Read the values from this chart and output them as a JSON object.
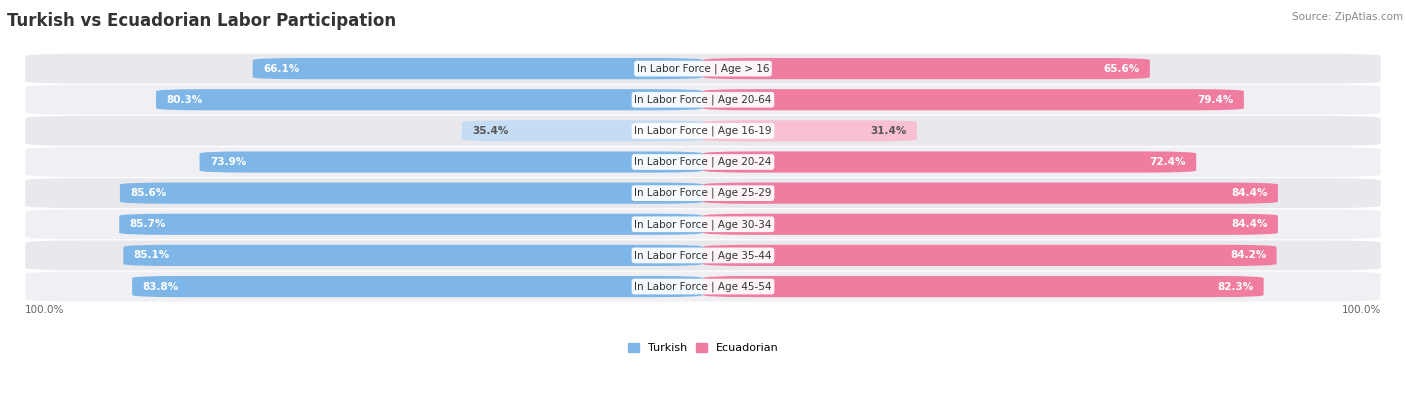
{
  "title": "Turkish vs Ecuadorian Labor Participation",
  "source": "Source: ZipAtlas.com",
  "categories": [
    "In Labor Force | Age > 16",
    "In Labor Force | Age 20-64",
    "In Labor Force | Age 16-19",
    "In Labor Force | Age 20-24",
    "In Labor Force | Age 25-29",
    "In Labor Force | Age 30-34",
    "In Labor Force | Age 35-44",
    "In Labor Force | Age 45-54"
  ],
  "turkish_values": [
    66.1,
    80.3,
    35.4,
    73.9,
    85.6,
    85.7,
    85.1,
    83.8
  ],
  "ecuadorian_values": [
    65.6,
    79.4,
    31.4,
    72.4,
    84.4,
    84.4,
    84.2,
    82.3
  ],
  "turkish_color": "#7EB6E8",
  "ecuadorian_color": "#F07CA0",
  "turkish_light_color": "#C5DCF5",
  "ecuadorian_light_color": "#F9C0D4",
  "row_bg_color": "#E8E8ED",
  "row_bg_alt": "#DCDCE3",
  "legend_turkish": "Turkish",
  "legend_ecuadorian": "Ecuadorian",
  "max_value": 100.0,
  "axis_label_left": "100.0%",
  "axis_label_right": "100.0%",
  "title_fontsize": 12,
  "label_fontsize": 7.5,
  "value_fontsize": 7.5,
  "source_fontsize": 7.5
}
